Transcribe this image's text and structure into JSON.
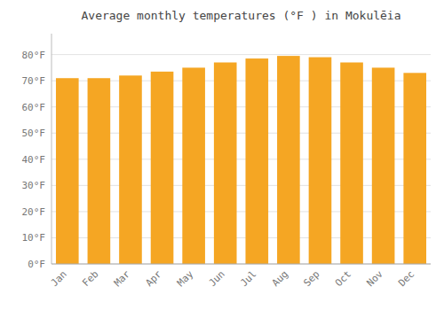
{
  "chart_data": {
    "type": "bar",
    "title": "Average monthly temperatures (°F ) in Mokulēia",
    "categories": [
      "Jan",
      "Feb",
      "Mar",
      "Apr",
      "May",
      "Jun",
      "Jul",
      "Aug",
      "Sep",
      "Oct",
      "Nov",
      "Dec"
    ],
    "values": [
      71.0,
      71.0,
      72.0,
      73.5,
      75.0,
      77.0,
      78.5,
      79.5,
      79.0,
      77.0,
      75.0,
      73.0
    ],
    "color": "#F5A623",
    "ylim": [
      0,
      88
    ],
    "yticks": [
      {
        "value": 0,
        "label": "0°F"
      },
      {
        "value": 10,
        "label": "10°F"
      },
      {
        "value": 20,
        "label": "20°F"
      },
      {
        "value": 30,
        "label": "30°F"
      },
      {
        "value": 40,
        "label": "40°F"
      },
      {
        "value": 50,
        "label": "50°F"
      },
      {
        "value": 60,
        "label": "60°F"
      },
      {
        "value": 70,
        "label": "70°F"
      },
      {
        "value": 80,
        "label": "80°F"
      }
    ],
    "grid": true
  }
}
